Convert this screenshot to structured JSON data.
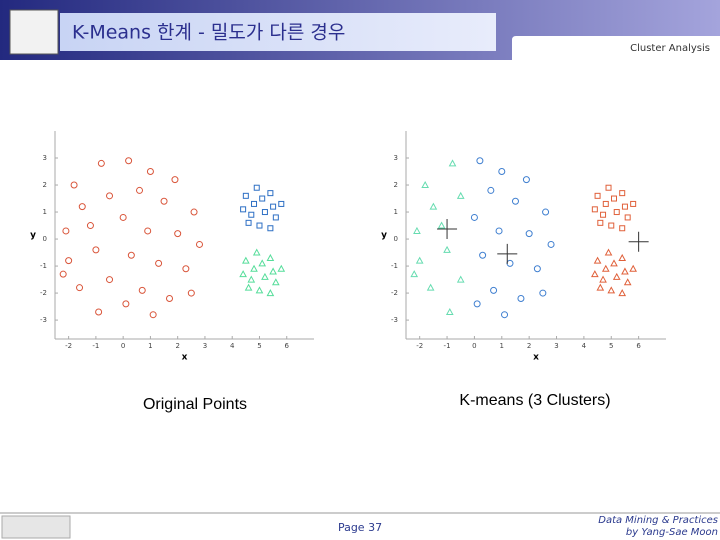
{
  "header": {
    "title": "K-Means 한계 - 밀도가 다른 경우",
    "section": "Cluster Analysis"
  },
  "captions": [
    "Original Points",
    "K-means (3 Clusters)"
  ],
  "footer": {
    "page": "Page 37",
    "course": "Data Mining & Practices",
    "author": "by Yang-Sae Moon"
  },
  "chart_data": [
    {
      "type": "scatter",
      "x_label": "x",
      "y_label": "y",
      "xlim": [
        -2.5,
        7
      ],
      "ylim": [
        -3.7,
        4
      ],
      "xticks": [
        -2,
        -1,
        0,
        1,
        2,
        3,
        4,
        5,
        6
      ],
      "yticks": [
        -3,
        -2,
        -1,
        0,
        1,
        2,
        3
      ],
      "series": [
        {
          "color": "#d9553a",
          "marker": "circle",
          "x": [
            -1.8,
            -0.8,
            0.2,
            1.0,
            1.9,
            -1.5,
            -0.5,
            0.6,
            1.5,
            2.6,
            -2.1,
            -1.2,
            0,
            0.9,
            2.0,
            2.8,
            -2.0,
            -1.0,
            0.3,
            1.3,
            2.3,
            -1.6,
            -0.5,
            0.7,
            1.7,
            -0.9,
            0.1,
            1.1,
            2.5,
            -2.2
          ],
          "values": [
            2.0,
            2.8,
            2.9,
            2.5,
            2.2,
            1.2,
            1.6,
            1.8,
            1.4,
            1.0,
            0.3,
            0.5,
            0.8,
            0.3,
            0.2,
            -0.2,
            -0.8,
            -0.4,
            -0.6,
            -0.9,
            -1.1,
            -1.8,
            -1.5,
            -1.9,
            -2.2,
            -2.7,
            -2.4,
            -2.8,
            -2.0,
            -1.3
          ]
        },
        {
          "color": "#2d6fc4",
          "marker": "square",
          "x": [
            4.5,
            4.9,
            5.4,
            5.8,
            4.4,
            4.8,
            5.2,
            5.6,
            4.6,
            5.0,
            5.4,
            5.1,
            4.7,
            5.5
          ],
          "values": [
            1.6,
            1.9,
            1.7,
            1.3,
            1.1,
            1.3,
            1.0,
            0.8,
            0.6,
            0.5,
            0.4,
            1.5,
            0.9,
            1.2
          ]
        },
        {
          "color": "#55dd9a",
          "marker": "triangle",
          "x": [
            4.5,
            4.9,
            5.4,
            5.8,
            4.4,
            4.8,
            5.2,
            5.6,
            4.6,
            5.0,
            5.4,
            5.1,
            4.7,
            5.5
          ],
          "values": [
            -0.8,
            -0.5,
            -0.7,
            -1.1,
            -1.3,
            -1.1,
            -1.4,
            -1.6,
            -1.8,
            -1.9,
            -2.0,
            -0.9,
            -1.5,
            -1.2
          ]
        }
      ]
    },
    {
      "type": "scatter",
      "x_label": "x",
      "y_label": "y",
      "xlim": [
        -2.5,
        7
      ],
      "ylim": [
        -3.7,
        4
      ],
      "xticks": [
        -2,
        -1,
        0,
        1,
        2,
        3,
        4,
        5,
        6
      ],
      "yticks": [
        -3,
        -2,
        -1,
        0,
        1,
        2,
        3
      ],
      "series": [
        {
          "color": "#66dcb0",
          "marker": "triangle",
          "x": [
            -1.8,
            -0.8,
            -1.5,
            -0.5,
            -2.1,
            -1.2,
            -2.0,
            -1.0,
            -1.6,
            -0.5,
            -0.9,
            -2.2
          ],
          "values": [
            2.0,
            2.8,
            1.2,
            1.6,
            0.3,
            0.5,
            -0.8,
            -0.4,
            -1.8,
            -1.5,
            -2.7,
            -1.3
          ]
        },
        {
          "color": "#3f7fd0",
          "marker": "circle",
          "x": [
            0.2,
            1.0,
            1.9,
            0.6,
            1.5,
            2.6,
            0,
            0.9,
            2.0,
            2.8,
            0.3,
            1.3,
            2.3,
            0.7,
            1.7,
            0.1,
            1.1,
            2.5
          ],
          "values": [
            2.9,
            2.5,
            2.2,
            1.8,
            1.4,
            1.0,
            0.8,
            0.3,
            0.2,
            -0.2,
            -0.6,
            -0.9,
            -1.1,
            -1.9,
            -2.2,
            -2.4,
            -2.8,
            -2.0
          ]
        },
        {
          "color": "#e0603a",
          "marker": "square",
          "x": [
            4.5,
            4.9,
            5.4,
            5.8,
            4.4,
            4.8,
            5.2,
            5.6,
            4.6,
            5.0,
            5.4,
            5.1,
            4.7,
            5.5
          ],
          "values": [
            1.6,
            1.9,
            1.7,
            1.3,
            1.1,
            1.3,
            1.0,
            0.8,
            0.6,
            0.5,
            0.4,
            1.5,
            0.9,
            1.2
          ]
        },
        {
          "color": "#e0603a",
          "marker": "triangle",
          "x": [
            4.5,
            4.9,
            5.4,
            5.8,
            4.4,
            4.8,
            5.2,
            5.6,
            4.6,
            5.0,
            5.4,
            5.1,
            4.7,
            5.5
          ],
          "values": [
            -0.8,
            -0.5,
            -0.7,
            -1.1,
            -1.3,
            -1.1,
            -1.4,
            -1.6,
            -1.8,
            -1.9,
            -2.0,
            -0.9,
            -1.5,
            -1.2
          ]
        },
        {
          "color": "#333333",
          "marker": "plus",
          "x": [
            -1,
            1.2,
            6
          ],
          "values": [
            0.37,
            -0.55,
            -0.1
          ]
        }
      ]
    }
  ]
}
